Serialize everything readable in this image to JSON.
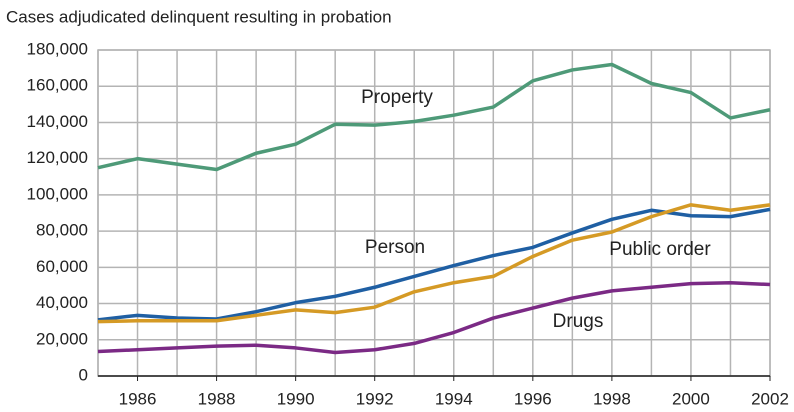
{
  "chart_data": {
    "type": "line",
    "title": "Cases adjudicated delinquent resulting in probation",
    "x": [
      1985,
      1986,
      1987,
      1988,
      1989,
      1990,
      1991,
      1992,
      1993,
      1994,
      1995,
      1996,
      1997,
      1998,
      1999,
      2000,
      2001,
      2002
    ],
    "xlim": [
      1985,
      2002
    ],
    "xticks": [
      1986,
      1988,
      1990,
      1992,
      1994,
      1996,
      1998,
      2000,
      2002
    ],
    "ylim": [
      0,
      180000
    ],
    "yticks": [
      0,
      {
        "value": 20000,
        "label": "20,000"
      },
      {
        "value": 40000,
        "label": "40,000"
      },
      {
        "value": 60000,
        "label": "60,000"
      },
      {
        "value": 80000,
        "label": "80,000"
      },
      {
        "value": 100000,
        "label": "100,000"
      },
      {
        "value": 120000,
        "label": "120,000"
      },
      {
        "value": 140000,
        "label": "140,000"
      },
      {
        "value": 160000,
        "label": "160,000"
      },
      {
        "value": 180000,
        "label": "180,000"
      }
    ],
    "grid": true,
    "series": [
      {
        "name": "Property",
        "color": "#4e9a78",
        "values": [
          115000,
          120000,
          117000,
          114000,
          123000,
          128000,
          139000,
          138500,
          140500,
          144000,
          148500,
          163000,
          169000,
          172000,
          161500,
          156500,
          142500,
          147000
        ]
      },
      {
        "name": "Person",
        "color": "#1f5fa3",
        "values": [
          31000,
          33500,
          32000,
          31500,
          35500,
          40500,
          44000,
          49000,
          55000,
          61000,
          66500,
          71000,
          79000,
          86500,
          91500,
          88500,
          88000,
          92000
        ]
      },
      {
        "name": "Public order",
        "color": "#d59a25",
        "values": [
          30000,
          30500,
          30500,
          30500,
          33500,
          36500,
          35000,
          38000,
          46500,
          51500,
          55000,
          66000,
          75000,
          79500,
          88000,
          94500,
          91500,
          94500
        ]
      },
      {
        "name": "Drugs",
        "color": "#7b2a85",
        "values": [
          13500,
          14500,
          15500,
          16500,
          17000,
          15500,
          13000,
          14500,
          18000,
          24000,
          32000,
          37500,
          43000,
          47000,
          49000,
          51000,
          51500,
          50500
        ]
      }
    ]
  }
}
